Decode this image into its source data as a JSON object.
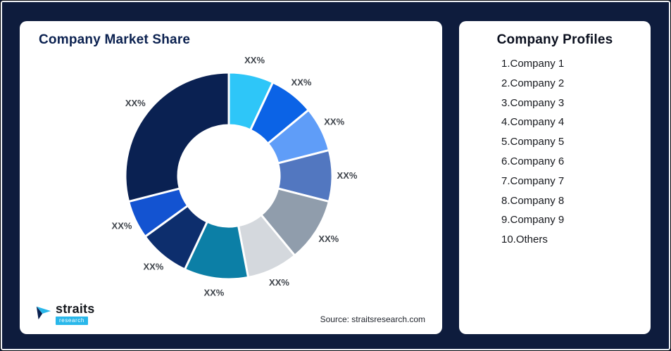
{
  "frame": {
    "background": "#0e1c3d"
  },
  "left_card": {
    "title": "Company Market Share",
    "source": "Source: straitsresearch.com",
    "logo": {
      "name": "straits",
      "sub": "research"
    }
  },
  "right_card": {
    "title": "Company Profiles",
    "items": [
      "1.Company 1",
      "2.Company 2",
      "3.Company 3",
      "4.Company 4",
      "5.Company 5",
      "6.Company 6",
      "7.Company 7",
      "8.Company 8",
      "9.Company 9",
      "10.Others"
    ]
  },
  "chart_data": {
    "type": "pie",
    "subtype": "donut",
    "title": "Company Market Share",
    "labels": [
      "Company 1",
      "Company 2",
      "Company 3",
      "Company 4",
      "Company 5",
      "Company 6",
      "Company 7",
      "Company 8",
      "Company 9",
      "Others"
    ],
    "display_labels": [
      "XX%",
      "XX%",
      "XX%",
      "XX%",
      "XX%",
      "XX%",
      "XX%",
      "XX%",
      "XX%",
      "XX%"
    ],
    "values": [
      7,
      7,
      7,
      8,
      10,
      8,
      10,
      8,
      6,
      29
    ],
    "values_note": "segment sizes estimated from arc lengths; chart displays XX% placeholder labels",
    "colors": [
      "#2ec6f8",
      "#0b63e6",
      "#5f9df8",
      "#5277c0",
      "#909dac",
      "#d4d8dd",
      "#0c7fa6",
      "#0d2e6d",
      "#1353d1",
      "#0a2152"
    ],
    "start_angle_deg": 0,
    "direction": "clockwise",
    "legend": "none",
    "slice_gap_stroke": "#ffffff"
  }
}
